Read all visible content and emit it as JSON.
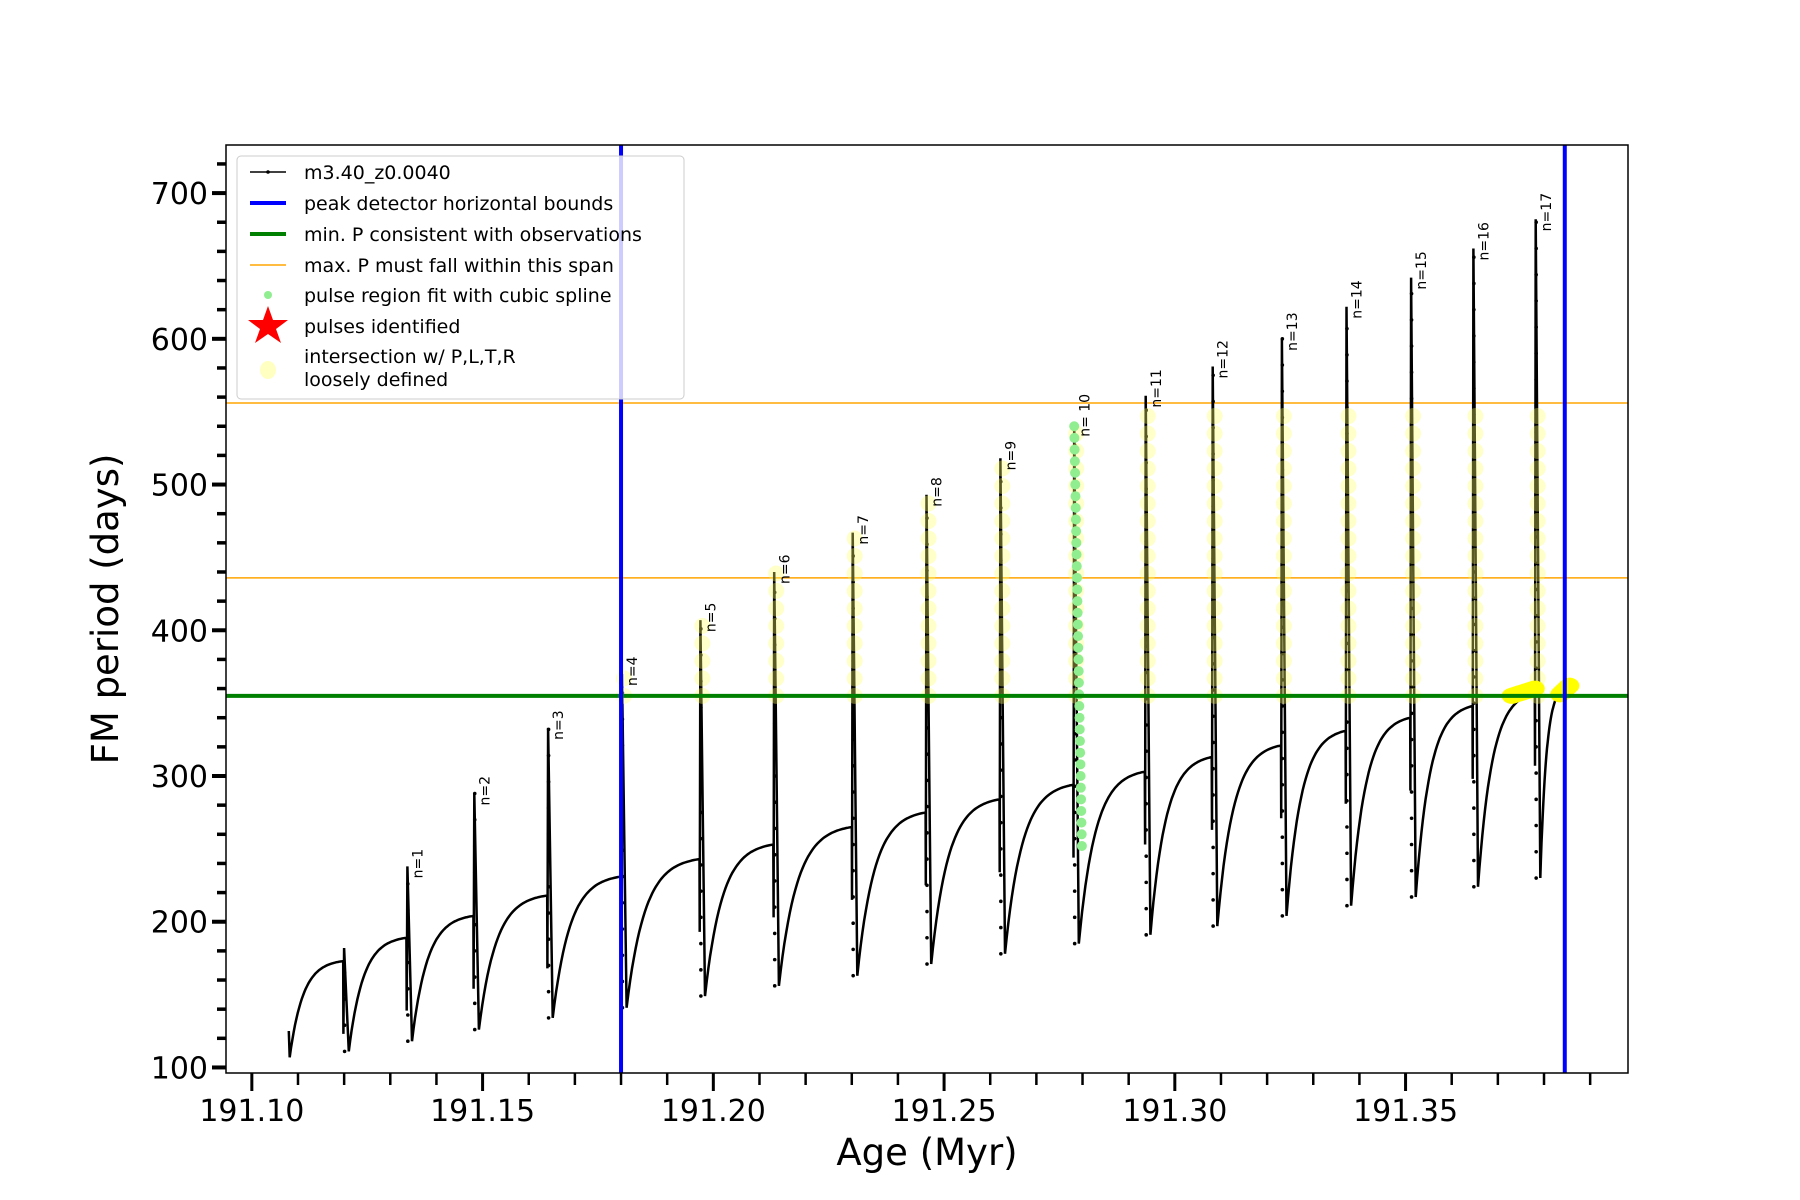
{
  "chart_data": {
    "type": "line",
    "title": "",
    "xlabel": "Age (Myr)",
    "ylabel": "FM period (days)",
    "xlim": [
      191.0944,
      191.3982
    ],
    "ylim": [
      96.2,
      733
    ],
    "xticks": [
      "191.10",
      "191.15",
      "191.20",
      "191.25",
      "191.30",
      "191.35"
    ],
    "xtick_values": [
      191.1,
      191.15,
      191.2,
      191.25,
      191.3,
      191.35
    ],
    "yticks": [
      "100",
      "200",
      "300",
      "400",
      "500",
      "600",
      "700"
    ],
    "ytick_values": [
      100,
      200,
      300,
      400,
      500,
      600,
      700
    ],
    "grid": false,
    "legend_position": "top-left",
    "series_name": "m3.40_z0.0040",
    "start": {
      "age": 191.108,
      "first_value": 125,
      "value": 107
    },
    "pulses": [
      {
        "label": "",
        "age": 191.1198,
        "pre": 173,
        "peak": 182,
        "min": 111
      },
      {
        "label": "n=1",
        "age": 191.1335,
        "pre": 189,
        "peak": 238,
        "min": 118
      },
      {
        "label": "n=2",
        "age": 191.148,
        "pre": 204,
        "peak": 288,
        "min": 126
      },
      {
        "label": "n=3",
        "age": 191.164,
        "pre": 218,
        "peak": 333,
        "min": 134
      },
      {
        "label": "n=4",
        "age": 191.18,
        "pre": 231,
        "peak": 370,
        "min": 141
      },
      {
        "label": "n=5",
        "age": 191.197,
        "pre": 243,
        "peak": 407,
        "min": 149
      },
      {
        "label": "n=6",
        "age": 191.213,
        "pre": 253,
        "peak": 440,
        "min": 156
      },
      {
        "label": "n=7",
        "age": 191.23,
        "pre": 265,
        "peak": 467,
        "min": 163
      },
      {
        "label": "n=8",
        "age": 191.246,
        "pre": 275,
        "peak": 493,
        "min": 171
      },
      {
        "label": "n=9",
        "age": 191.262,
        "pre": 284,
        "peak": 518,
        "min": 178
      },
      {
        "label": "n= 10",
        "age": 191.278,
        "pre": 294,
        "peak": 541,
        "min": 185
      },
      {
        "label": "n=11",
        "age": 191.2935,
        "pre": 303,
        "peak": 561,
        "min": 191
      },
      {
        "label": "n=12",
        "age": 191.308,
        "pre": 313,
        "peak": 581,
        "min": 197
      },
      {
        "label": "n=13",
        "age": 191.323,
        "pre": 321,
        "peak": 600,
        "min": 204
      },
      {
        "label": "n=14",
        "age": 191.337,
        "pre": 331,
        "peak": 622,
        "min": 211
      },
      {
        "label": "n=15",
        "age": 191.351,
        "pre": 340,
        "peak": 642,
        "min": 217
      },
      {
        "label": "n=16",
        "age": 191.3645,
        "pre": 348,
        "peak": 662,
        "min": 224
      },
      {
        "label": "n=17",
        "age": 191.378,
        "pre": 357,
        "peak": 682,
        "min": 230
      }
    ],
    "end": {
      "age": 191.3845,
      "value": 361
    },
    "peak_detector_bounds": [
      191.18,
      191.3845
    ],
    "min_period_observed": 355,
    "max_period_span": [
      436,
      556
    ],
    "spline_fit_pulse": "n= 10",
    "spline_fit_range": [
      245,
      540
    ],
    "loose_intersections": [
      {
        "age_range": [
          191.373,
          191.378
        ],
        "value_range": [
          355,
          360
        ]
      },
      {
        "age_range": [
          191.3835,
          191.3855
        ],
        "value_range": [
          356,
          362
        ]
      }
    ],
    "colors": {
      "series": "#000000",
      "bounds": "#0000ff",
      "min_p": "#008000",
      "max_p": "#ffa500",
      "spline": "#90ee90",
      "star": "#ff0000",
      "loose": "#ffff00"
    },
    "legend": [
      "m3.40_z0.0040",
      "peak detector horizontal bounds",
      "min. P consistent with observations",
      "max. P must fall within this span",
      "pulse region fit with cubic spline",
      "pulses identified",
      "intersection w/ P,L,T,R",
      "loosely defined"
    ]
  }
}
